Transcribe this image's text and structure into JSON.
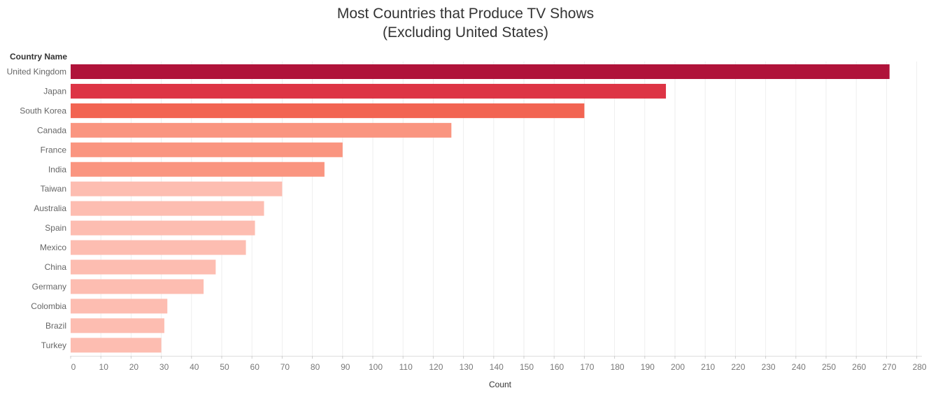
{
  "chart_data": {
    "type": "bar",
    "orientation": "horizontal",
    "title": [
      "Most Countries that Produce TV Shows",
      "(Excluding United States)"
    ],
    "row_header": "Country Name",
    "xlabel": "Count",
    "xlim": [
      0,
      280
    ],
    "xticks": [
      0,
      10,
      20,
      30,
      40,
      50,
      60,
      70,
      80,
      90,
      100,
      110,
      120,
      130,
      140,
      150,
      160,
      170,
      180,
      190,
      200,
      210,
      220,
      230,
      240,
      250,
      260,
      270,
      280
    ],
    "grid": true,
    "categories": [
      "United Kingdom",
      "Japan",
      "South Korea",
      "Canada",
      "France",
      "India",
      "Taiwan",
      "Australia",
      "Spain",
      "Mexico",
      "China",
      "Germany",
      "Colombia",
      "Brazil",
      "Turkey"
    ],
    "values": [
      271,
      197,
      170,
      126,
      90,
      84,
      70,
      64,
      61,
      58,
      48,
      44,
      32,
      31,
      30
    ],
    "colors": [
      "#b0133a",
      "#dd3445",
      "#f26452",
      "#fa9580",
      "#fa9580",
      "#fa9580",
      "#fdbdb1",
      "#fdbdb1",
      "#fdbdb1",
      "#fdbdb1",
      "#fdbdb1",
      "#fdbdb1",
      "#fdbdb1",
      "#fdbdb1",
      "#fdbdb1"
    ]
  }
}
